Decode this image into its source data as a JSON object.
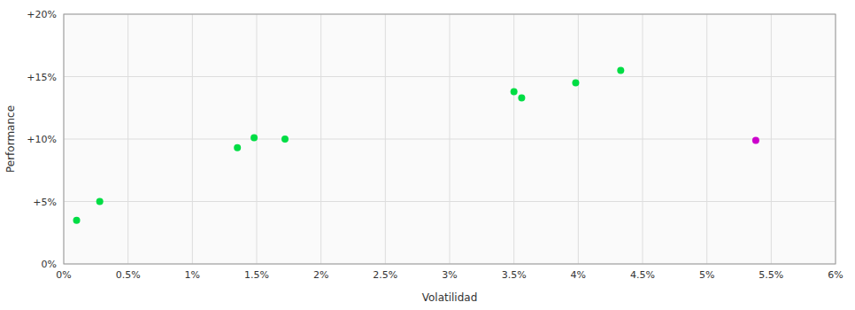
{
  "chart_data": {
    "type": "scatter",
    "x_label": "Volatilidad",
    "y_label": "Performance",
    "series": [
      {
        "color": "#00dd44",
        "x": [
          0.1,
          0.28,
          1.35,
          1.48,
          1.72,
          3.5,
          3.56,
          3.98,
          4.33
        ],
        "values": [
          3.5,
          5.0,
          9.3,
          10.1,
          10.0,
          13.8,
          13.3,
          14.5,
          15.5
        ]
      },
      {
        "color": "#cc00cc",
        "x": [
          5.38
        ],
        "values": [
          9.9
        ]
      }
    ],
    "xlim": [
      0.0,
      6.0
    ],
    "ylim": [
      0.0,
      20.0
    ],
    "xticks": [
      {
        "value": 0.0,
        "label": "0%"
      },
      {
        "value": 0.5,
        "label": "0.5%"
      },
      {
        "value": 1.0,
        "label": "1%"
      },
      {
        "value": 1.5,
        "label": "1.5%"
      },
      {
        "value": 2.0,
        "label": "2%"
      },
      {
        "value": 2.5,
        "label": "2.5%"
      },
      {
        "value": 3.0,
        "label": "3%"
      },
      {
        "value": 3.5,
        "label": "3.5%"
      },
      {
        "value": 4.0,
        "label": "4%"
      },
      {
        "value": 4.5,
        "label": "4.5%"
      },
      {
        "value": 5.0,
        "label": "5%"
      },
      {
        "value": 5.5,
        "label": "5.5%"
      },
      {
        "value": 6.0,
        "label": "6%"
      }
    ],
    "yticks": [
      {
        "value": 0,
        "label": "0%"
      },
      {
        "value": 5,
        "label": "+5%"
      },
      {
        "value": 10,
        "label": "+10%"
      },
      {
        "value": 15,
        "label": "+15%"
      },
      {
        "value": 20,
        "label": "+20%"
      }
    ],
    "grid": true
  }
}
